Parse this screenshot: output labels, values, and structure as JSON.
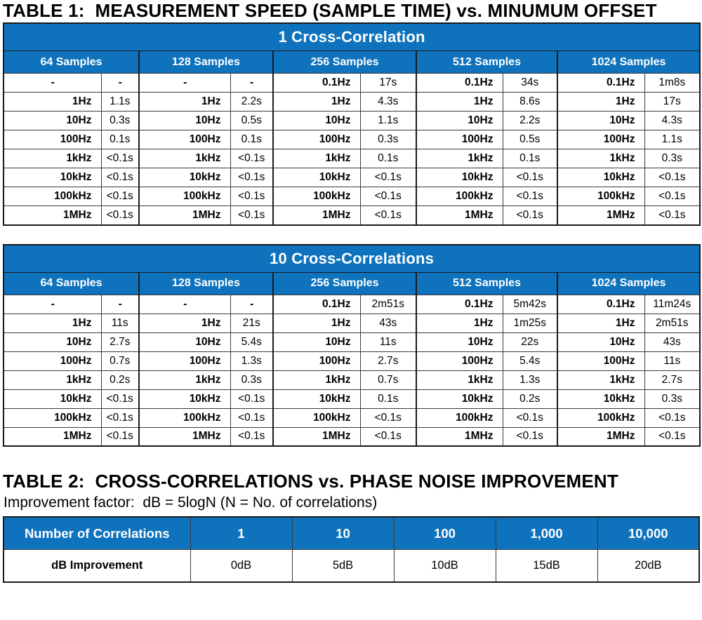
{
  "colors": {
    "header_blue": "#0E72BD",
    "border_dark": "#1a1a1a"
  },
  "table1": {
    "title": "TABLE 1:  MEASUREMENT SPEED (SAMPLE TIME) vs. MINUMUM OFFSET",
    "banner": "1 Cross-Correlation",
    "group_headers": [
      "64 Samples",
      "128 Samples",
      "256 Samples",
      "512 Samples",
      "1024 Samples"
    ],
    "rows": [
      [
        "-",
        "-",
        "-",
        "-",
        "0.1Hz",
        "17s",
        "0.1Hz",
        "34s",
        "0.1Hz",
        "1m8s"
      ],
      [
        "1Hz",
        "1.1s",
        "1Hz",
        "2.2s",
        "1Hz",
        "4.3s",
        "1Hz",
        "8.6s",
        "1Hz",
        "17s"
      ],
      [
        "10Hz",
        "0.3s",
        "10Hz",
        "0.5s",
        "10Hz",
        "1.1s",
        "10Hz",
        "2.2s",
        "10Hz",
        "4.3s"
      ],
      [
        "100Hz",
        "0.1s",
        "100Hz",
        "0.1s",
        "100Hz",
        "0.3s",
        "100Hz",
        "0.5s",
        "100Hz",
        "1.1s"
      ],
      [
        "1kHz",
        "<0.1s",
        "1kHz",
        "<0.1s",
        "1kHz",
        "0.1s",
        "1kHz",
        "0.1s",
        "1kHz",
        "0.3s"
      ],
      [
        "10kHz",
        "<0.1s",
        "10kHz",
        "<0.1s",
        "10kHz",
        "<0.1s",
        "10kHz",
        "<0.1s",
        "10kHz",
        "<0.1s"
      ],
      [
        "100kHz",
        "<0.1s",
        "100kHz",
        "<0.1s",
        "100kHz",
        "<0.1s",
        "100kHz",
        "<0.1s",
        "100kHz",
        "<0.1s"
      ],
      [
        "1MHz",
        "<0.1s",
        "1MHz",
        "<0.1s",
        "1MHz",
        "<0.1s",
        "1MHz",
        "<0.1s",
        "1MHz",
        "<0.1s"
      ]
    ]
  },
  "table2": {
    "banner": "10 Cross-Correlations",
    "group_headers": [
      "64 Samples",
      "128 Samples",
      "256 Samples",
      "512 Samples",
      "1024 Samples"
    ],
    "rows": [
      [
        "-",
        "-",
        "-",
        "-",
        "0.1Hz",
        "2m51s",
        "0.1Hz",
        "5m42s",
        "0.1Hz",
        "11m24s"
      ],
      [
        "1Hz",
        "11s",
        "1Hz",
        "21s",
        "1Hz",
        "43s",
        "1Hz",
        "1m25s",
        "1Hz",
        "2m51s"
      ],
      [
        "10Hz",
        "2.7s",
        "10Hz",
        "5.4s",
        "10Hz",
        "11s",
        "10Hz",
        "22s",
        "10Hz",
        "43s"
      ],
      [
        "100Hz",
        "0.7s",
        "100Hz",
        "1.3s",
        "100Hz",
        "2.7s",
        "100Hz",
        "5.4s",
        "100Hz",
        "11s"
      ],
      [
        "1kHz",
        "0.2s",
        "1kHz",
        "0.3s",
        "1kHz",
        "0.7s",
        "1kHz",
        "1.3s",
        "1kHz",
        "2.7s"
      ],
      [
        "10kHz",
        "<0.1s",
        "10kHz",
        "<0.1s",
        "10kHz",
        "0.1s",
        "10kHz",
        "0.2s",
        "10kHz",
        "0.3s"
      ],
      [
        "100kHz",
        "<0.1s",
        "100kHz",
        "<0.1s",
        "100kHz",
        "<0.1s",
        "100kHz",
        "<0.1s",
        "100kHz",
        "<0.1s"
      ],
      [
        "1MHz",
        "<0.1s",
        "1MHz",
        "<0.1s",
        "1MHz",
        "<0.1s",
        "1MHz",
        "<0.1s",
        "1MHz",
        "<0.1s"
      ]
    ]
  },
  "table3": {
    "title": "TABLE 2:  CROSS-CORRELATIONS vs. PHASE NOISE IMPROVEMENT",
    "subtitle": "Improvement factor:  dB = 5logN (N = No. of correlations)",
    "header": [
      "Number of Correlations",
      "1",
      "10",
      "100",
      "1,000",
      "10,000"
    ],
    "data": [
      "dB Improvement",
      "0dB",
      "5dB",
      "10dB",
      "15dB",
      "20dB"
    ]
  }
}
